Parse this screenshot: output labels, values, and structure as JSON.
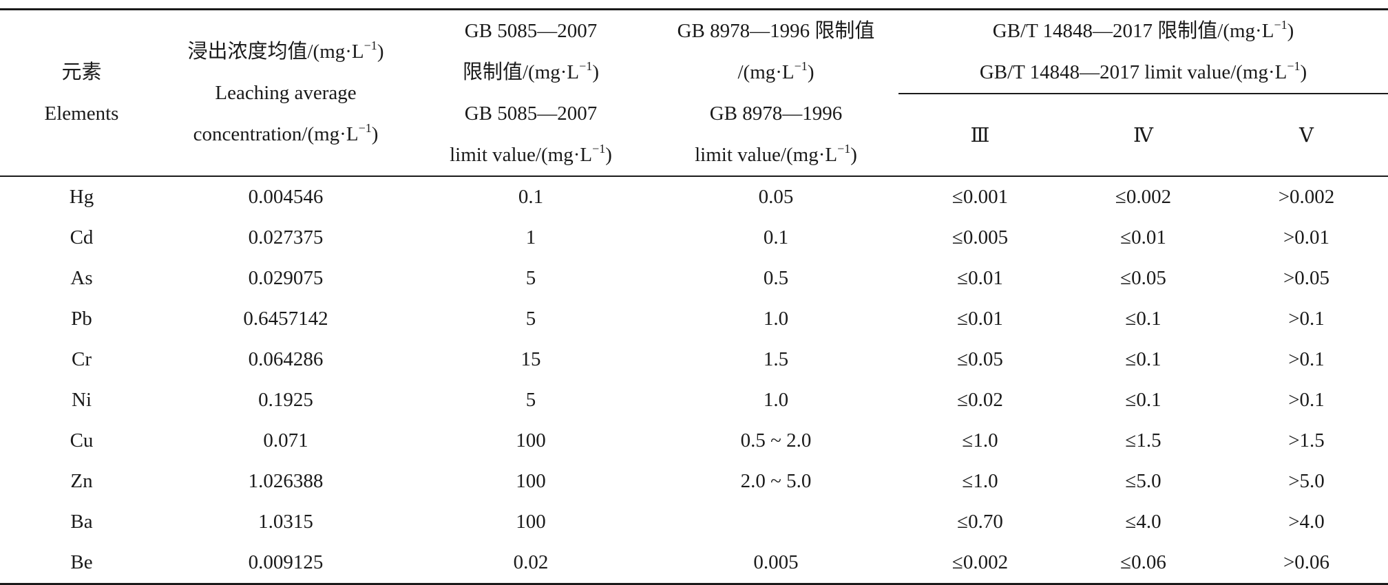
{
  "table": {
    "headers": {
      "elements": {
        "zh": "元素",
        "en": "Elements"
      },
      "leaching": {
        "zh": "浸出浓度均值/(mg·L",
        "zh_close": ")",
        "en1": "Leaching average",
        "en2": "concentration/(mg·L",
        "en2_close": ")",
        "sup": "−1"
      },
      "gb5085": {
        "l1": "GB 5085—2007",
        "l2": "限制值/(mg·L",
        "l2_close": ")",
        "l3": "GB 5085—2007",
        "l4": "limit value/(mg·L",
        "l4_close": ")",
        "sup": "−1"
      },
      "gb8978": {
        "l1": "GB 8978—1996 限制值",
        "l2": "/(mg·L",
        "l2_close": ")",
        "l3": "GB 8978—1996",
        "l4": "limit value/(mg·L",
        "l4_close": ")",
        "sup": "−1"
      },
      "gbt14848": {
        "l1": "GB/T 14848—2017 限制值/(mg·L",
        "l1_close": ")",
        "l2": "GB/T 14848—2017 limit value/(mg·L",
        "l2_close": ")",
        "sup": "−1",
        "classes": [
          "Ⅲ",
          "Ⅳ",
          "Ⅴ"
        ]
      }
    },
    "rows": [
      {
        "element": "Hg",
        "leaching": "0.004546",
        "gb5085": "0.1",
        "gb8978": "0.05",
        "iii": "≤0.001",
        "iv": "≤0.002",
        "v": ">0.002"
      },
      {
        "element": "Cd",
        "leaching": "0.027375",
        "gb5085": "1",
        "gb8978": "0.1",
        "iii": "≤0.005",
        "iv": "≤0.01",
        "v": ">0.01"
      },
      {
        "element": "As",
        "leaching": "0.029075",
        "gb5085": "5",
        "gb8978": "0.5",
        "iii": "≤0.01",
        "iv": "≤0.05",
        "v": ">0.05"
      },
      {
        "element": "Pb",
        "leaching": "0.6457142",
        "gb5085": "5",
        "gb8978": "1.0",
        "iii": "≤0.01",
        "iv": "≤0.1",
        "v": ">0.1"
      },
      {
        "element": "Cr",
        "leaching": "0.064286",
        "gb5085": "15",
        "gb8978": "1.5",
        "iii": "≤0.05",
        "iv": "≤0.1",
        "v": ">0.1"
      },
      {
        "element": "Ni",
        "leaching": "0.1925",
        "gb5085": "5",
        "gb8978": "1.0",
        "iii": "≤0.02",
        "iv": "≤0.1",
        "v": ">0.1"
      },
      {
        "element": "Cu",
        "leaching": "0.071",
        "gb5085": "100",
        "gb8978": "0.5 ~ 2.0",
        "iii": "≤1.0",
        "iv": "≤1.5",
        "v": ">1.5"
      },
      {
        "element": "Zn",
        "leaching": "1.026388",
        "gb5085": "100",
        "gb8978": "2.0 ~ 5.0",
        "iii": "≤1.0",
        "iv": "≤5.0",
        "v": ">5.0"
      },
      {
        "element": "Ba",
        "leaching": "1.0315",
        "gb5085": "100",
        "gb8978": "",
        "iii": "≤0.70",
        "iv": "≤4.0",
        "v": ">4.0"
      },
      {
        "element": "Be",
        "leaching": "0.009125",
        "gb5085": "0.02",
        "gb8978": "0.005",
        "iii": "≤0.002",
        "iv": "≤0.06",
        "v": ">0.06"
      }
    ]
  }
}
